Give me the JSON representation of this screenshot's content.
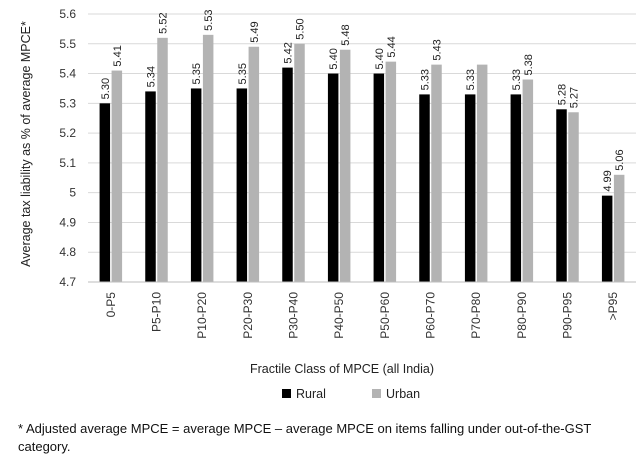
{
  "chart_data": {
    "type": "bar",
    "ylabel": "Average tax liability as % of average MPCE*",
    "xlabel": "Fractile Class of MPCE (all India)",
    "ylim": [
      4.7,
      5.6
    ],
    "yticks": [
      "4.7",
      "4.8",
      "4.9",
      "5",
      "5.1",
      "5.2",
      "5.3",
      "5.4",
      "5.5",
      "5.6"
    ],
    "ytick_values": [
      4.7,
      4.8,
      4.9,
      5.0,
      5.1,
      5.2,
      5.3,
      5.4,
      5.5,
      5.6
    ],
    "categories": [
      "0-P5",
      "P5-P10",
      "P10-P20",
      "P20-P30",
      "P30-P40",
      "P40-P50",
      "P50-P60",
      "P60-P70",
      "P70-P80",
      "P80-P90",
      "P90-P95",
      ">P95"
    ],
    "series": [
      {
        "name": "Rural",
        "color": "#000000",
        "values": [
          5.3,
          5.34,
          5.35,
          5.35,
          5.42,
          5.4,
          5.4,
          5.33,
          5.33,
          5.33,
          5.28,
          4.99
        ],
        "labels": [
          "5.30",
          "5.34",
          "5.35",
          "5.35",
          "5.42",
          "5.40",
          "5.40",
          "5.33",
          "5.33",
          "5.33",
          "5.28",
          "4.99"
        ]
      },
      {
        "name": "Urban",
        "color": "#b3b3b3",
        "values": [
          5.41,
          5.52,
          5.53,
          5.49,
          5.5,
          5.48,
          5.44,
          5.43,
          5.43,
          5.38,
          5.27,
          5.06
        ],
        "labels": [
          "5.41",
          "5.52",
          "5.53",
          "5.49",
          "5.50",
          "5.48",
          "5.44",
          "5.43",
          "",
          "5.38",
          "5.27",
          "5.06"
        ]
      }
    ],
    "legend_position": "bottom",
    "grid": true
  },
  "footnote": "* Adjusted average MPCE = average MPCE – average MPCE on items falling under out-of-the-GST category."
}
